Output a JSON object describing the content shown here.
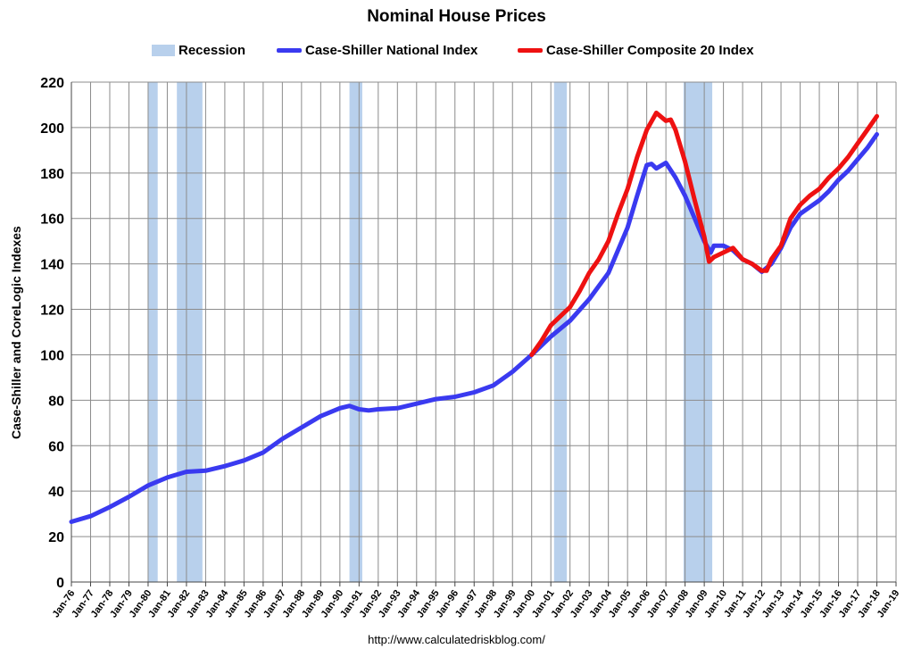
{
  "chart_data": {
    "type": "line",
    "title": "Nominal House Prices",
    "ylabel": "Case-Shiller and CoreLogic Indexes",
    "source": "http://www.calculatedriskblog.com/",
    "ylim": [
      0,
      220
    ],
    "yticks": [
      "0",
      "20",
      "40",
      "60",
      "80",
      "100",
      "120",
      "140",
      "160",
      "180",
      "200",
      "220"
    ],
    "xticks": [
      "Jan-76",
      "Jan-77",
      "Jan-78",
      "Jan-79",
      "Jan-80",
      "Jan-81",
      "Jan-82",
      "Jan-83",
      "Jan-84",
      "Jan-85",
      "Jan-86",
      "Jan-87",
      "Jan-88",
      "Jan-89",
      "Jan-90",
      "Jan-91",
      "Jan-92",
      "Jan-93",
      "Jan-94",
      "Jan-95",
      "Jan-96",
      "Jan-97",
      "Jan-98",
      "Jan-99",
      "Jan-00",
      "Jan-01",
      "Jan-02",
      "Jan-03",
      "Jan-04",
      "Jan-05",
      "Jan-06",
      "Jan-07",
      "Jan-08",
      "Jan-09",
      "Jan-10",
      "Jan-11",
      "Jan-12",
      "Jan-13",
      "Jan-14",
      "Jan-15",
      "Jan-16",
      "Jan-17",
      "Jan-18",
      "Jan-19"
    ],
    "grid": true,
    "legend_position": "top",
    "recession_label": "Recession",
    "recession_color": "#b8d0ec",
    "recessions": [
      [
        "1980-01",
        "1980-07"
      ],
      [
        "1981-07",
        "1982-11"
      ],
      [
        "1990-07",
        "1991-03"
      ],
      [
        "2001-03",
        "2001-11"
      ],
      [
        "2007-12",
        "2009-06"
      ]
    ],
    "series": [
      {
        "name": "Case-Shiller National Index",
        "color": "#3a3af0",
        "points": [
          [
            "1976-01",
            26.5
          ],
          [
            "1977-01",
            29.0
          ],
          [
            "1978-01",
            33.0
          ],
          [
            "1979-01",
            37.5
          ],
          [
            "1980-01",
            42.5
          ],
          [
            "1981-01",
            46.0
          ],
          [
            "1982-01",
            48.5
          ],
          [
            "1983-01",
            49.0
          ],
          [
            "1984-01",
            51.0
          ],
          [
            "1985-01",
            53.5
          ],
          [
            "1986-01",
            57.0
          ],
          [
            "1987-01",
            63.0
          ],
          [
            "1988-01",
            68.0
          ],
          [
            "1989-01",
            73.0
          ],
          [
            "1990-01",
            76.5
          ],
          [
            "1990-07",
            77.5
          ],
          [
            "1991-01",
            76.0
          ],
          [
            "1991-07",
            75.5
          ],
          [
            "1992-01",
            76.0
          ],
          [
            "1993-01",
            76.5
          ],
          [
            "1994-01",
            78.5
          ],
          [
            "1995-01",
            80.5
          ],
          [
            "1996-01",
            81.5
          ],
          [
            "1997-01",
            83.5
          ],
          [
            "1998-01",
            86.5
          ],
          [
            "1999-01",
            92.5
          ],
          [
            "2000-01",
            100.0
          ],
          [
            "2001-01",
            108.0
          ],
          [
            "2002-01",
            115.0
          ],
          [
            "2003-01",
            124.5
          ],
          [
            "2004-01",
            136.0
          ],
          [
            "2005-01",
            156.0
          ],
          [
            "2005-07",
            170.0
          ],
          [
            "2006-01",
            183.5
          ],
          [
            "2006-04",
            184.0
          ],
          [
            "2006-07",
            182.0
          ],
          [
            "2007-01",
            184.5
          ],
          [
            "2007-07",
            178.0
          ],
          [
            "2008-01",
            170.0
          ],
          [
            "2008-07",
            160.0
          ],
          [
            "2009-01",
            150.0
          ],
          [
            "2009-05",
            145.0
          ],
          [
            "2009-07",
            148.0
          ],
          [
            "2010-01",
            148.0
          ],
          [
            "2010-07",
            146.0
          ],
          [
            "2011-01",
            142.0
          ],
          [
            "2011-07",
            140.0
          ],
          [
            "2012-01",
            136.5
          ],
          [
            "2012-07",
            140.0
          ],
          [
            "2013-01",
            147.0
          ],
          [
            "2013-07",
            156.0
          ],
          [
            "2014-01",
            162.0
          ],
          [
            "2014-07",
            165.0
          ],
          [
            "2015-01",
            168.0
          ],
          [
            "2015-07",
            172.0
          ],
          [
            "2016-01",
            177.0
          ],
          [
            "2016-07",
            181.0
          ],
          [
            "2017-01",
            186.0
          ],
          [
            "2017-07",
            191.0
          ],
          [
            "2018-01",
            197.0
          ]
        ]
      },
      {
        "name": "Case-Shiller Composite 20 Index",
        "color": "#ee1111",
        "points": [
          [
            "2000-01",
            100.0
          ],
          [
            "2000-07",
            106.0
          ],
          [
            "2001-01",
            113.0
          ],
          [
            "2001-07",
            117.0
          ],
          [
            "2002-01",
            121.0
          ],
          [
            "2002-07",
            128.0
          ],
          [
            "2003-01",
            136.0
          ],
          [
            "2003-07",
            142.0
          ],
          [
            "2004-01",
            150.0
          ],
          [
            "2004-07",
            162.0
          ],
          [
            "2005-01",
            173.0
          ],
          [
            "2005-07",
            187.0
          ],
          [
            "2006-01",
            199.0
          ],
          [
            "2006-07",
            206.5
          ],
          [
            "2007-01",
            203.0
          ],
          [
            "2007-04",
            203.5
          ],
          [
            "2007-07",
            199.0
          ],
          [
            "2008-01",
            185.0
          ],
          [
            "2008-07",
            168.0
          ],
          [
            "2009-01",
            152.0
          ],
          [
            "2009-04",
            141.0
          ],
          [
            "2009-07",
            143.0
          ],
          [
            "2010-01",
            145.0
          ],
          [
            "2010-07",
            147.0
          ],
          [
            "2011-01",
            142.0
          ],
          [
            "2011-07",
            140.0
          ],
          [
            "2012-01",
            137.0
          ],
          [
            "2012-04",
            137.0
          ],
          [
            "2012-07",
            142.0
          ],
          [
            "2013-01",
            148.0
          ],
          [
            "2013-07",
            160.0
          ],
          [
            "2014-01",
            166.0
          ],
          [
            "2014-07",
            170.0
          ],
          [
            "2015-01",
            173.0
          ],
          [
            "2015-07",
            178.0
          ],
          [
            "2016-01",
            182.0
          ],
          [
            "2016-07",
            187.0
          ],
          [
            "2017-01",
            193.0
          ],
          [
            "2017-07",
            199.0
          ],
          [
            "2018-01",
            205.0
          ]
        ]
      }
    ]
  }
}
